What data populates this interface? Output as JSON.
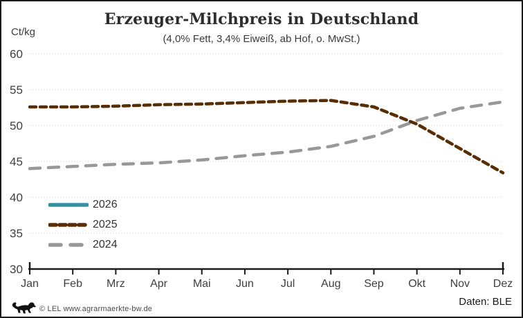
{
  "header": {
    "title": "Erzeuger-Milchpreis in Deutschland",
    "subtitle": "(4,0% Fett, 3,4% Eiweiß, ab Hof, o. MwSt.)",
    "y_unit_label": "Ct/kg"
  },
  "footer": {
    "copyright": "© LEL www.agrarmaerkte-bw.de",
    "source": "Daten: BLE",
    "logo_icon": "lel-lion-logo-icon"
  },
  "colors": {
    "series_2026": "#3093a5",
    "series_2025": "#5a2d00",
    "series_2024": "#989898",
    "gridline": "#dcdcdc",
    "axis": "#1a1a1a",
    "tick_label": "#3f3f3f"
  },
  "chart_data": {
    "type": "line",
    "title": "Erzeuger-Milchpreis in Deutschland",
    "subtitle": "(4,0% Fett, 3,4% Eiweiß, ab Hof, o. MwSt.)",
    "ylabel": "Ct/kg",
    "xlabel": "",
    "ylim": [
      30,
      60
    ],
    "ytick_step": 5,
    "grid": "horizontal-dotted",
    "legend_position": "inside-lower-left",
    "x": [
      "Jan",
      "Feb",
      "Mrz",
      "Apr",
      "Mai",
      "Jun",
      "Jul",
      "Aug",
      "Sep",
      "Okt",
      "Nov",
      "Dez"
    ],
    "series": [
      {
        "name": "2026",
        "color": "#3093a5",
        "style": "solid",
        "values": []
      },
      {
        "name": "2025",
        "color": "#5a2d00",
        "style": "dashed-short",
        "values": [
          52.6,
          52.6,
          52.7,
          52.9,
          53.0,
          53.2,
          53.4,
          53.5,
          52.6,
          50.2,
          46.8,
          43.4
        ]
      },
      {
        "name": "2024",
        "color": "#989898",
        "style": "dashed-long",
        "values": [
          44.0,
          44.3,
          44.6,
          44.8,
          45.2,
          45.8,
          46.3,
          47.1,
          48.5,
          50.7,
          52.4,
          53.3
        ]
      }
    ]
  }
}
